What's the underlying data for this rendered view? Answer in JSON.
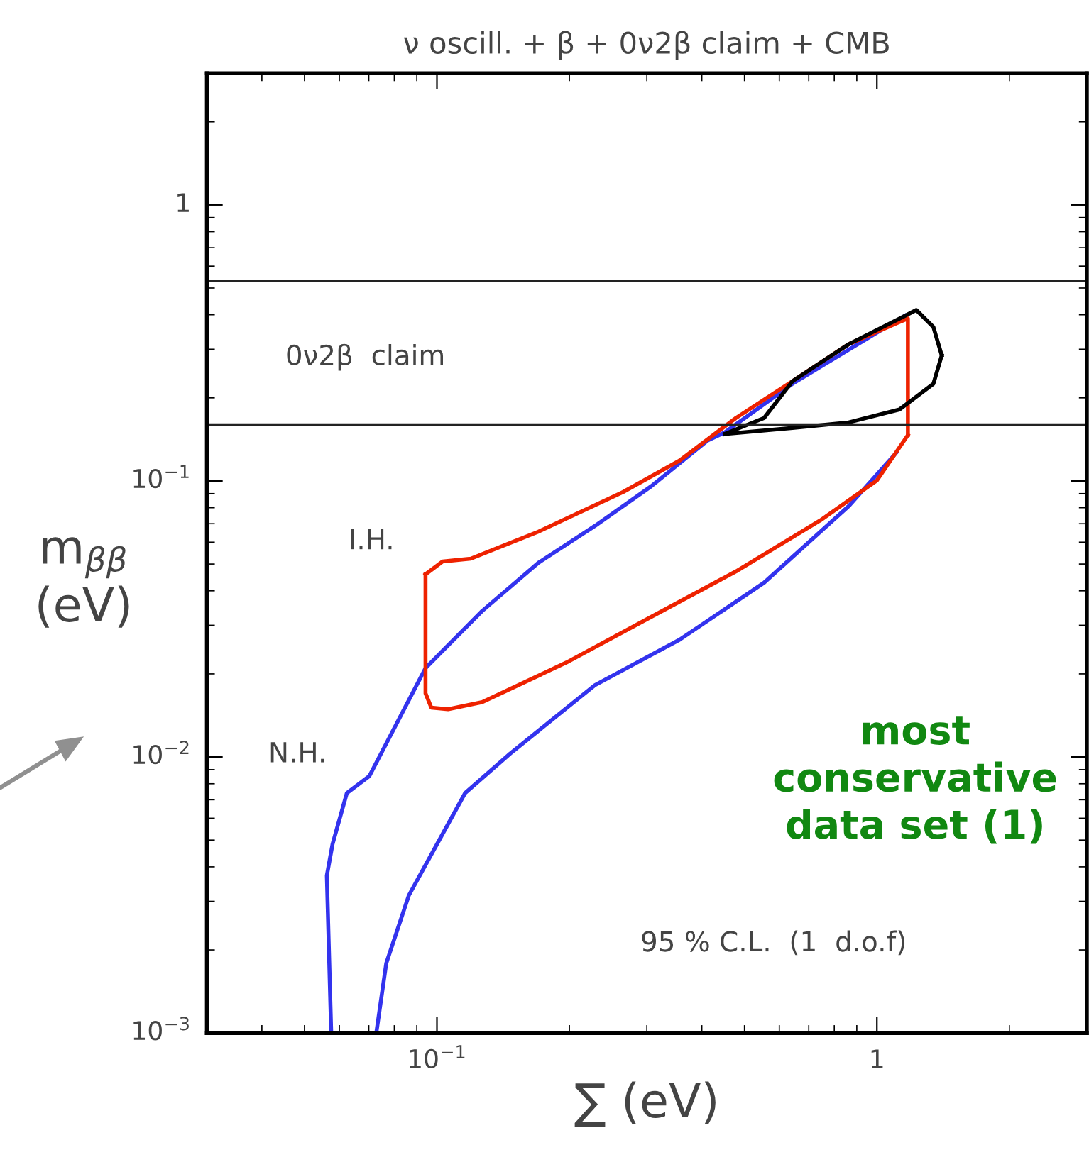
{
  "chart_data": {
    "type": "line",
    "title": "ν oscill. + β + 0ν2β claim + CMB",
    "xlabel": "∑ (eV)",
    "ylabel": "m$_{ββ}$\n(eV)",
    "log": "xy",
    "xlim": [
      0.03,
      3
    ],
    "ylim": [
      0.001,
      3
    ],
    "xticks": [
      {
        "value": 0.1,
        "label": "10$^{−1}$"
      },
      1
    ],
    "yticks": [
      {
        "value": 0.001,
        "label": "10$^{−3}$"
      },
      {
        "value": 0.01,
        "label": "10$^{−2}$"
      },
      {
        "value": 0.1,
        "label": "10$^{−1}$"
      },
      1
    ],
    "grid": false,
    "legend": false,
    "marker": "none",
    "line_style": "solid",
    "series": [
      {
        "color": "#3333ee",
        "x": [
          0.0575,
          0.0562,
          0.0579,
          0.0624,
          0.0702,
          0.0942,
          0.1267,
          0.17,
          0.2285,
          0.307,
          0.412,
          0.451,
          0.643,
          0.863,
          1.159
        ],
        "values": [
          0.001,
          0.00372,
          0.00483,
          0.0074,
          0.00853,
          0.021,
          0.0338,
          0.0505,
          0.0687,
          0.0957,
          0.14,
          0.15,
          0.225,
          0.299,
          0.397
        ]
      },
      {
        "color": "#3333ee",
        "x": [
          0.0728,
          0.0767,
          0.0863,
          0.1,
          0.1159,
          0.1468,
          0.2285,
          0.356,
          0.554,
          0.863,
          1.109
        ],
        "values": [
          0.001,
          0.00179,
          0.00315,
          0.00483,
          0.0074,
          0.0103,
          0.0182,
          0.0266,
          0.0428,
          0.0811,
          0.127
        ]
      },
      {
        "color": "#ee2200",
        "x": [
          0.0942,
          0.103,
          0.1194,
          0.17,
          0.265,
          0.356,
          0.478,
          0.643,
          0.863,
          1.176,
          1.176
        ],
        "values": [
          0.0459,
          0.0511,
          0.0523,
          0.0655,
          0.0912,
          0.1185,
          0.169,
          0.23,
          0.313,
          0.388,
          0.1466
        ]
      },
      {
        "color": "#ee2200",
        "x": [
          0.0942,
          0.0942,
          0.0971,
          0.106,
          0.1267,
          0.197,
          0.307,
          0.478,
          0.744,
          1.0,
          1.176
        ],
        "values": [
          0.0459,
          0.017,
          0.0151,
          0.0149,
          0.0158,
          0.022,
          0.0322,
          0.047,
          0.072,
          0.1004,
          0.1466
        ]
      },
      {
        "color": "#000000",
        "x": [
          0.451,
          0.554,
          0.643,
          0.863,
          1.229,
          1.344,
          1.404
        ],
        "values": [
          0.148,
          0.169,
          0.23,
          0.313,
          0.416,
          0.361,
          0.285
        ]
      },
      {
        "color": "#000000",
        "x": [
          0.451,
          0.643,
          0.863,
          1.125,
          1.344,
          1.404
        ],
        "values": [
          0.148,
          0.1556,
          0.163,
          0.1815,
          0.225,
          0.285
        ]
      }
    ],
    "ref_lines": [
      {
        "axis": "y",
        "value": 0.53,
        "color": "#222222"
      },
      {
        "axis": "y",
        "value": 0.16,
        "color": "#222222"
      }
    ],
    "annotations": [
      "0ν2β  claim",
      "I.H.",
      "N.H.",
      "most\nconservative\ndata set (1)",
      "95 % C.L.  (1  d.o.f)"
    ]
  }
}
